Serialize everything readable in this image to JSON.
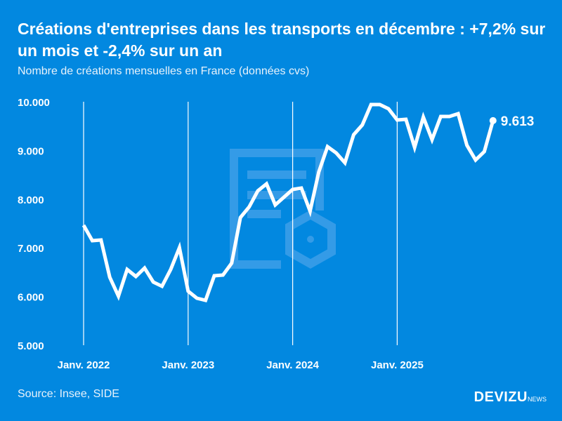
{
  "title": "Créations d'entreprises dans les transports en décembre : +7,2% sur un mois et -2,4% sur un an",
  "subtitle": "Nombre de créations mensuelles en France (données cvs)",
  "source": "Source: Insee, SIDE",
  "logo": {
    "main": "DEVIZU",
    "suffix": "NEWS"
  },
  "colors": {
    "background": "#0288e0",
    "line": "#ffffff"
  },
  "chart_data": {
    "type": "line",
    "title": "Créations d'entreprises dans les transports en décembre : +7,2% sur un mois et -2,4% sur un an",
    "ylim": [
      5000,
      10000
    ],
    "yticks": [
      5000,
      6000,
      7000,
      8000,
      9000,
      10000
    ],
    "ytick_labels": [
      "5.000",
      "6.000",
      "7.000",
      "8.000",
      "9.000",
      "10.000"
    ],
    "xtick_labels": [
      "Janv. 2022",
      "Janv. 2023",
      "Janv. 2024",
      "Janv. 2025"
    ],
    "x_start": "2022-01",
    "x_end": "2025-12",
    "grid": "vertical lines at each January",
    "end_label": "9.613",
    "values": [
      7464,
      7147,
      7161,
      6398,
      6009,
      6556,
      6412,
      6585,
      6297,
      6210,
      6556,
      7003,
      6110,
      5965,
      5922,
      6427,
      6441,
      6686,
      7623,
      7839,
      8170,
      8314,
      7882,
      8040,
      8199,
      8228,
      7752,
      8559,
      9078,
      8948,
      8747,
      9323,
      9525,
      9943,
      9943,
      9856,
      9626,
      9640,
      9064,
      9683,
      9222,
      9697,
      9697,
      9755,
      9107,
      8804,
      8977,
      9613
    ]
  }
}
